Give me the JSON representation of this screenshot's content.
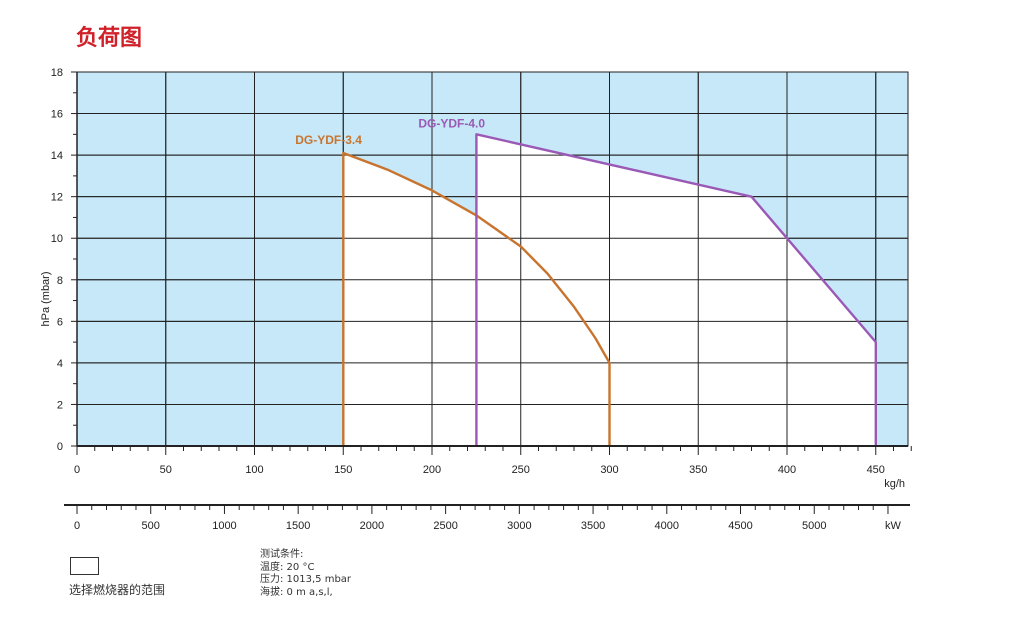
{
  "title": "负荷图",
  "chart_data": {
    "type": "area",
    "xlabel": "kg/h",
    "ylabel": "hPa (mbar)",
    "xlim": [
      0,
      470
    ],
    "ylim": [
      0,
      18
    ],
    "x_ticks": [
      0,
      50,
      100,
      150,
      200,
      250,
      300,
      350,
      400,
      450
    ],
    "y_ticks": [
      0,
      2,
      4,
      6,
      8,
      10,
      12,
      14,
      16,
      18
    ],
    "grid": true,
    "secondary_axis": {
      "label": "kW",
      "ticks": [
        0,
        500,
        1000,
        1500,
        2000,
        2500,
        3000,
        3500,
        4000,
        4500,
        5000
      ]
    },
    "series": [
      {
        "name": "DG-YDF-3.4",
        "color": "#c8742e",
        "points": [
          [
            150,
            0
          ],
          [
            150,
            14.1
          ],
          [
            175,
            13.3
          ],
          [
            200,
            12.3
          ],
          [
            225,
            11.1
          ],
          [
            250,
            9.6
          ],
          [
            265,
            8.3
          ],
          [
            280,
            6.7
          ],
          [
            292,
            5.2
          ],
          [
            300,
            4.0
          ],
          [
            300,
            0
          ]
        ]
      },
      {
        "name": "DG-YDF-4.0",
        "color": "#9b59b6",
        "points": [
          [
            225,
            0
          ],
          [
            225,
            15.0
          ],
          [
            380,
            12.0
          ],
          [
            450,
            5.0
          ],
          [
            450,
            0
          ]
        ]
      }
    ]
  },
  "legend": {
    "label": "选择燃烧器的范围"
  },
  "test_conditions": {
    "heading": "测试条件:",
    "temperature": "温度: 20 °C",
    "pressure": "压力: 1013,5 mbar",
    "altitude": "海拔: 0 m a,s,l,"
  },
  "colors": {
    "background_fill": "#c6e8f8",
    "title": "#d0202a",
    "axis": "#222222"
  }
}
